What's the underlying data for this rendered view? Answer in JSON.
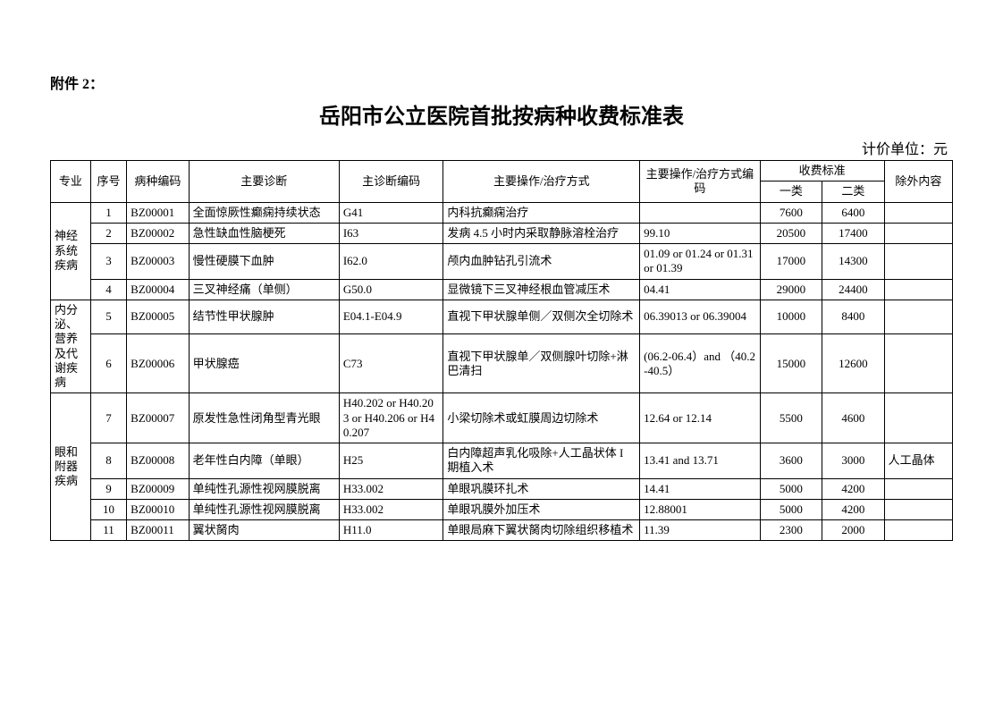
{
  "attachment_label": "附件 2：",
  "title": "岳阳市公立医院首批按病种收费标准表",
  "unit_label": "计价单位：元",
  "columns": {
    "specialty": "专业",
    "index": "序号",
    "disease_code": "病种编码",
    "main_diagnosis": "主要诊断",
    "diag_code": "主诊断编码",
    "operation": "主要操作/治疗方式",
    "operation_code": "主要操作/治疗方式编码",
    "fee": "收费标准",
    "fee1": "一类",
    "fee2": "二类",
    "exclusion": "除外内容"
  },
  "groups": [
    {
      "name": "神经系统疾病",
      "rows": [
        {
          "idx": "1",
          "code": "BZ00001",
          "diag": "全面惊厥性癫痫持续状态",
          "diag_code": "G41",
          "op": "内科抗癫痫治疗",
          "op_code": "",
          "fee1": "7600",
          "fee2": "6400",
          "excl": ""
        },
        {
          "idx": "2",
          "code": "BZ00002",
          "diag": "急性缺血性脑梗死",
          "diag_code": "I63",
          "op": "发病 4.5 小时内采取静脉溶栓治疗",
          "op_code": "99.10",
          "fee1": "20500",
          "fee2": "17400",
          "excl": ""
        },
        {
          "idx": "3",
          "code": "BZ00003",
          "diag": "慢性硬膜下血肿",
          "diag_code": "I62.0",
          "op": "颅内血肿钻孔引流术",
          "op_code": "01.09 or 01.24 or 01.31 or 01.39",
          "fee1": "17000",
          "fee2": "14300",
          "excl": ""
        },
        {
          "idx": "4",
          "code": "BZ00004",
          "diag": "三叉神经痛（单侧）",
          "diag_code": "G50.0",
          "op": "显微镜下三叉神经根血管减压术",
          "op_code": "04.41",
          "fee1": "29000",
          "fee2": "24400",
          "excl": ""
        }
      ]
    },
    {
      "name": "内分泌、营养及代谢疾病",
      "rows": [
        {
          "idx": "5",
          "code": "BZ00005",
          "diag": "结节性甲状腺肿",
          "diag_code": "E04.1-E04.9",
          "op": "直视下甲状腺单侧／双侧次全切除术",
          "op_code": "06.39013 or 06.39004",
          "fee1": "10000",
          "fee2": "8400",
          "excl": ""
        },
        {
          "idx": "6",
          "code": "BZ00006",
          "diag": "甲状腺癌",
          "diag_code": "C73",
          "op": "直视下甲状腺单／双侧腺叶切除+淋巴清扫",
          "op_code": "(06.2-06.4）and （40.2-40.5）",
          "fee1": "15000",
          "fee2": "12600",
          "excl": ""
        }
      ]
    },
    {
      "name": "眼和附器疾病",
      "rows": [
        {
          "idx": "7",
          "code": "BZ00007",
          "diag": "原发性急性闭角型青光眼",
          "diag_code": "H40.202 or H40.203 or H40.206 or H40.207",
          "op": "小梁切除术或虹膜周边切除术",
          "op_code": "12.64 or 12.14",
          "fee1": "5500",
          "fee2": "4600",
          "excl": ""
        },
        {
          "idx": "8",
          "code": "BZ00008",
          "diag": "老年性白内障（单眼）",
          "diag_code": "H25",
          "op": "白内障超声乳化吸除+人工晶状体 I 期植入术",
          "op_code": "13.41 and 13.71",
          "fee1": "3600",
          "fee2": "3000",
          "excl": "人工晶体"
        },
        {
          "idx": "9",
          "code": "BZ00009",
          "diag": "单纯性孔源性视网膜脱离",
          "diag_code": "H33.002",
          "op": "单眼巩膜环扎术",
          "op_code": "14.41",
          "fee1": "5000",
          "fee2": "4200",
          "excl": ""
        },
        {
          "idx": "10",
          "code": "BZ00010",
          "diag": "单纯性孔源性视网膜脱离",
          "diag_code": "H33.002",
          "op": "单眼巩膜外加压术",
          "op_code": "12.88001",
          "fee1": "5000",
          "fee2": "4200",
          "excl": ""
        },
        {
          "idx": "11",
          "code": "BZ00011",
          "diag": "翼状胬肉",
          "diag_code": "H11.0",
          "op": "单眼局麻下翼状胬肉切除组织移植术",
          "op_code": "11.39",
          "fee1": "2300",
          "fee2": "2000",
          "excl": ""
        }
      ]
    }
  ]
}
